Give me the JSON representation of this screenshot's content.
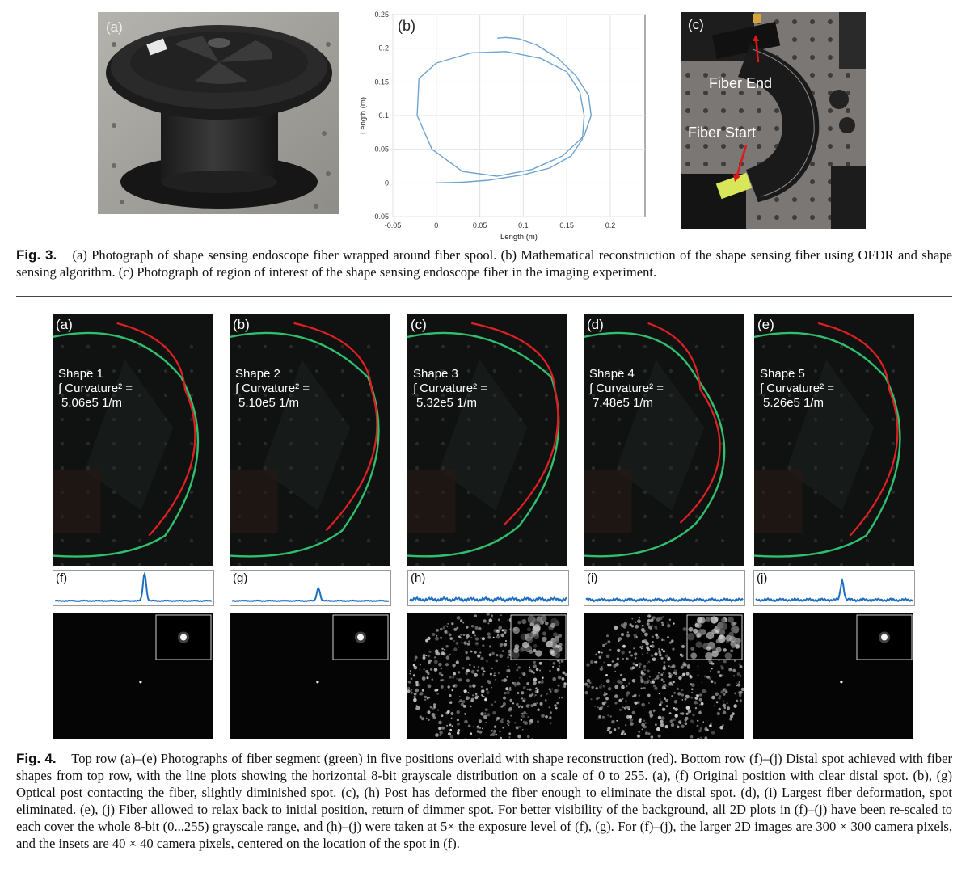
{
  "fig3": {
    "panel_a_label": "(a)",
    "panel_b_label": "(b)",
    "panel_c_label": "(c)",
    "fiber_end_label": "Fiber End",
    "fiber_start_label": "Fiber Start",
    "caption_label": "Fig. 3.",
    "caption_text": "(a) Photograph of shape sensing endoscope fiber wrapped around fiber spool. (b) Mathematical reconstruction of the shape sensing fiber using OFDR and shape sensing algorithm. (c) Photograph of region of interest of the shape sensing endoscope fiber in the imaging experiment."
  },
  "chart_data": {
    "type": "line",
    "xlabel": "Length (m)",
    "ylabel": "Length (m)",
    "xlim": [
      -0.05,
      0.24
    ],
    "ylim": [
      -0.05,
      0.25
    ],
    "xticks": [
      "-0.05",
      "0",
      "0.05",
      "0.1",
      "0.15",
      "0.2"
    ],
    "yticks": [
      "-0.05",
      "0",
      "0.05",
      "0.1",
      "0.15",
      "0.2",
      "0.25"
    ],
    "xtick_values": [
      -0.05,
      0,
      0.05,
      0.1,
      0.15,
      0.2
    ],
    "ytick_values": [
      -0.05,
      0,
      0.05,
      0.1,
      0.15,
      0.2,
      0.25
    ],
    "grid": true,
    "color": "#6ea3cf",
    "series": [
      {
        "x": [
          0.0,
          0.03,
          0.06,
          0.1,
          0.13,
          0.155,
          0.168,
          0.17,
          0.165,
          0.15,
          0.12,
          0.08,
          0.04,
          0.0,
          -0.02,
          -0.022,
          -0.005,
          0.03,
          0.07,
          0.11,
          0.145,
          0.17,
          0.178,
          0.175,
          0.16,
          0.14,
          0.115,
          0.095,
          0.08,
          0.07
        ],
        "y": [
          0.0,
          0.001,
          0.004,
          0.012,
          0.022,
          0.04,
          0.065,
          0.1,
          0.135,
          0.165,
          0.185,
          0.195,
          0.193,
          0.178,
          0.155,
          0.1,
          0.05,
          0.017,
          0.01,
          0.02,
          0.04,
          0.07,
          0.1,
          0.13,
          0.16,
          0.185,
          0.205,
          0.214,
          0.216,
          0.215
        ]
      }
    ]
  },
  "fig4": {
    "panels": [
      {
        "label": "(a)",
        "shape": "Shape 1",
        "curv_line": "∫ Curvature² =",
        "value": "5.06e5 1/m",
        "plot_label": "(f)"
      },
      {
        "label": "(b)",
        "shape": "Shape 2",
        "curv_line": "∫ Curvature² =",
        "value": "5.10e5 1/m",
        "plot_label": "(g)"
      },
      {
        "label": "(c)",
        "shape": "Shape 3",
        "curv_line": "∫ Curvature² =",
        "value": "5.32e5 1/m",
        "plot_label": "(h)"
      },
      {
        "label": "(d)",
        "shape": "Shape 4",
        "curv_line": "∫ Curvature² =",
        "value": "7.48e5 1/m",
        "plot_label": "(i)"
      },
      {
        "label": "(e)",
        "shape": "Shape 5",
        "curv_line": "∫ Curvature² =",
        "value": "5.26e5 1/m",
        "plot_label": "(j)"
      }
    ],
    "caption_label": "Fig. 4.",
    "caption_text": "Top row (a)–(e) Photographs of fiber segment (green) in five positions overlaid with shape reconstruction (red). Bottom row (f)–(j) Distal spot achieved with fiber shapes from top row, with the line plots showing the horizontal 8-bit grayscale distribution on a scale of 0 to 255. (a), (f) Original position with clear distal spot. (b), (g) Optical post contacting the fiber, slightly diminished spot. (c), (h) Post has deformed the fiber enough to eliminate the distal spot. (d), (i) Largest fiber deformation, spot eliminated. (e), (j) Fiber allowed to relax back to initial position, return of dimmer spot. For better visibility of the background, all 2D plots in (f)–(j) have been re-scaled to each cover the whole 8-bit (0...255) grayscale range, and (h)–(j) were taken at 5× the exposure level of (f), (g). For (f)–(j), the larger 2D images are 300 × 300 camera pixels, and the insets are 40 × 40 camera pixels, centered on the location of the spot in (f)."
  },
  "colors": {
    "fiber_green": "#35d17a",
    "recon_red": "#e02020",
    "plot_blue": "#1f6fc0"
  }
}
